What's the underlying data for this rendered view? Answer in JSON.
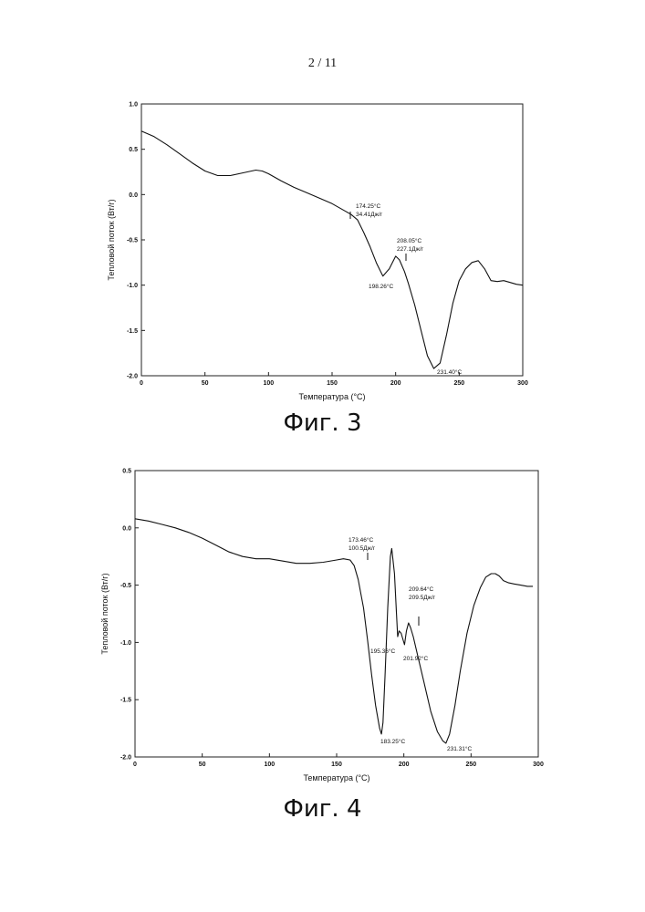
{
  "page": {
    "number": "2  / 11"
  },
  "figures": [
    {
      "caption": "Фиг. 3"
    },
    {
      "caption": "Фиг. 4"
    }
  ],
  "chart_data": [
    {
      "type": "line",
      "xlabel": "Температура (°C)",
      "ylabel": "Тепловой поток (Вт/г)",
      "xlim": [
        0,
        300
      ],
      "ylim": [
        -2.0,
        1.0
      ],
      "xticks": [
        "0",
        "50",
        "100",
        "150",
        "200",
        "250",
        "300"
      ],
      "yticks": [
        "1.0",
        "0.5",
        "0.0",
        "-0.5",
        "-1.0",
        "-1.5",
        "-2.0"
      ],
      "grid": false,
      "series": [
        {
          "x": [
            0,
            10,
            20,
            30,
            40,
            50,
            60,
            70,
            80,
            90,
            95,
            100,
            110,
            120,
            130,
            140,
            150,
            160,
            165,
            170,
            175,
            180,
            185,
            190,
            195,
            200,
            203,
            207,
            210,
            215,
            220,
            225,
            230,
            235,
            240,
            245,
            250,
            255,
            260,
            265,
            270,
            275,
            280,
            285,
            290,
            295,
            300
          ],
          "y": [
            0.7,
            0.64,
            0.55,
            0.45,
            0.35,
            0.26,
            0.21,
            0.21,
            0.24,
            0.27,
            0.26,
            0.23,
            0.15,
            0.08,
            0.02,
            -0.04,
            -0.1,
            -0.18,
            -0.22,
            -0.28,
            -0.42,
            -0.58,
            -0.76,
            -0.9,
            -0.82,
            -0.68,
            -0.72,
            -0.85,
            -0.98,
            -1.22,
            -1.5,
            -1.78,
            -1.92,
            -1.86,
            -1.55,
            -1.2,
            -0.95,
            -0.82,
            -0.75,
            -0.73,
            -0.82,
            -0.95,
            -0.96,
            -0.95,
            -0.97,
            -0.99,
            -1.0
          ]
        }
      ],
      "annotations": [
        {
          "text": [
            "174.25°C",
            "34.41Дж/г"
          ]
        },
        {
          "text": [
            "208.05°C",
            "227.1Дж/г"
          ]
        },
        {
          "text": [
            "198.26°C"
          ]
        },
        {
          "text": [
            "231.40°C"
          ]
        }
      ]
    },
    {
      "type": "line",
      "xlabel": "Температура (°C)",
      "ylabel": "Тепловой поток (Вт/г)",
      "xlim": [
        0,
        300
      ],
      "ylim": [
        -2.0,
        0.5
      ],
      "xticks": [
        "0",
        "50",
        "100",
        "150",
        "200",
        "250",
        "300"
      ],
      "yticks": [
        "0.5",
        "0.0",
        "-0.5",
        "-1.0",
        "-1.5",
        "-2.0"
      ],
      "grid": false,
      "series": [
        {
          "x": [
            0,
            10,
            20,
            30,
            40,
            50,
            60,
            70,
            80,
            90,
            100,
            110,
            120,
            130,
            140,
            150,
            155,
            160,
            163,
            166,
            170,
            173,
            176,
            179,
            182,
            183.3,
            184.5,
            186,
            188,
            190,
            191,
            193,
            194.5,
            195.4,
            196.5,
            198,
            199.5,
            200.5,
            201.9,
            203.5,
            205,
            207,
            210,
            215,
            220,
            225,
            229,
            231.3,
            234,
            238,
            242,
            247,
            252,
            257,
            261,
            265,
            268,
            271,
            274,
            278,
            282,
            287,
            292,
            296
          ],
          "y": [
            0.08,
            0.06,
            0.03,
            0.0,
            -0.04,
            -0.09,
            -0.15,
            -0.21,
            -0.25,
            -0.27,
            -0.27,
            -0.29,
            -0.31,
            -0.31,
            -0.3,
            -0.28,
            -0.27,
            -0.28,
            -0.33,
            -0.45,
            -0.7,
            -0.98,
            -1.28,
            -1.55,
            -1.75,
            -1.8,
            -1.7,
            -1.3,
            -0.7,
            -0.25,
            -0.18,
            -0.4,
            -0.75,
            -0.95,
            -0.9,
            -0.92,
            -0.98,
            -1.02,
            -0.9,
            -0.83,
            -0.87,
            -0.95,
            -1.1,
            -1.35,
            -1.6,
            -1.78,
            -1.86,
            -1.88,
            -1.8,
            -1.55,
            -1.25,
            -0.92,
            -0.68,
            -0.52,
            -0.43,
            -0.4,
            -0.4,
            -0.42,
            -0.46,
            -0.48,
            -0.49,
            -0.5,
            -0.51,
            -0.51
          ]
        }
      ],
      "annotations": [
        {
          "text": [
            "173.46°C",
            "100.5Дж/г"
          ]
        },
        {
          "text": [
            "209.64°C",
            "209.5Дж/г"
          ]
        },
        {
          "text": [
            "195.36°C"
          ]
        },
        {
          "text": [
            "201.92°C"
          ]
        },
        {
          "text": [
            "183.25°C"
          ]
        },
        {
          "text": [
            "231.31°C"
          ]
        }
      ]
    }
  ]
}
